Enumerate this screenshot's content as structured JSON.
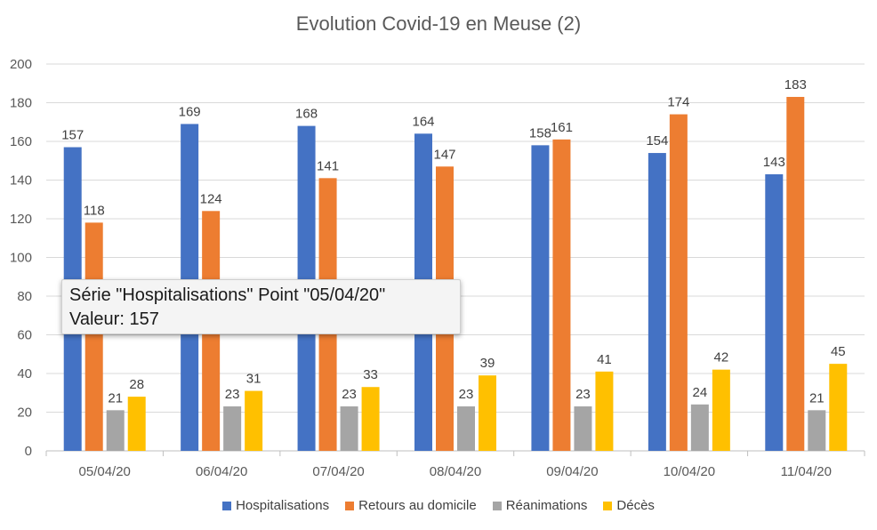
{
  "chart_data": {
    "type": "bar",
    "title": "Evolution Covid-19 en Meuse (2)",
    "categories": [
      "05/04/20",
      "06/04/20",
      "07/04/20",
      "08/04/20",
      "09/04/20",
      "10/04/20",
      "11/04/20"
    ],
    "series": [
      {
        "name": "Hospitalisations",
        "color": "#4472c4",
        "values": [
          157,
          169,
          168,
          164,
          158,
          154,
          143
        ]
      },
      {
        "name": "Retours au domicile",
        "color": "#ed7d31",
        "values": [
          118,
          124,
          141,
          147,
          161,
          174,
          183
        ]
      },
      {
        "name": "Réanimations",
        "color": "#a5a5a5",
        "values": [
          21,
          23,
          23,
          23,
          23,
          24,
          21
        ]
      },
      {
        "name": "Décès",
        "color": "#ffc000",
        "values": [
          28,
          31,
          33,
          39,
          41,
          42,
          45
        ]
      }
    ],
    "ylim": [
      0,
      200
    ],
    "yticks": [
      0,
      20,
      40,
      60,
      80,
      100,
      120,
      140,
      160,
      180,
      200
    ],
    "grid": true,
    "legend": "bottom",
    "xlabel": "",
    "ylabel": ""
  },
  "tooltip": {
    "line1": "Série \"Hospitalisations\" Point \"05/04/20\"",
    "line2": "Valeur: 157"
  }
}
